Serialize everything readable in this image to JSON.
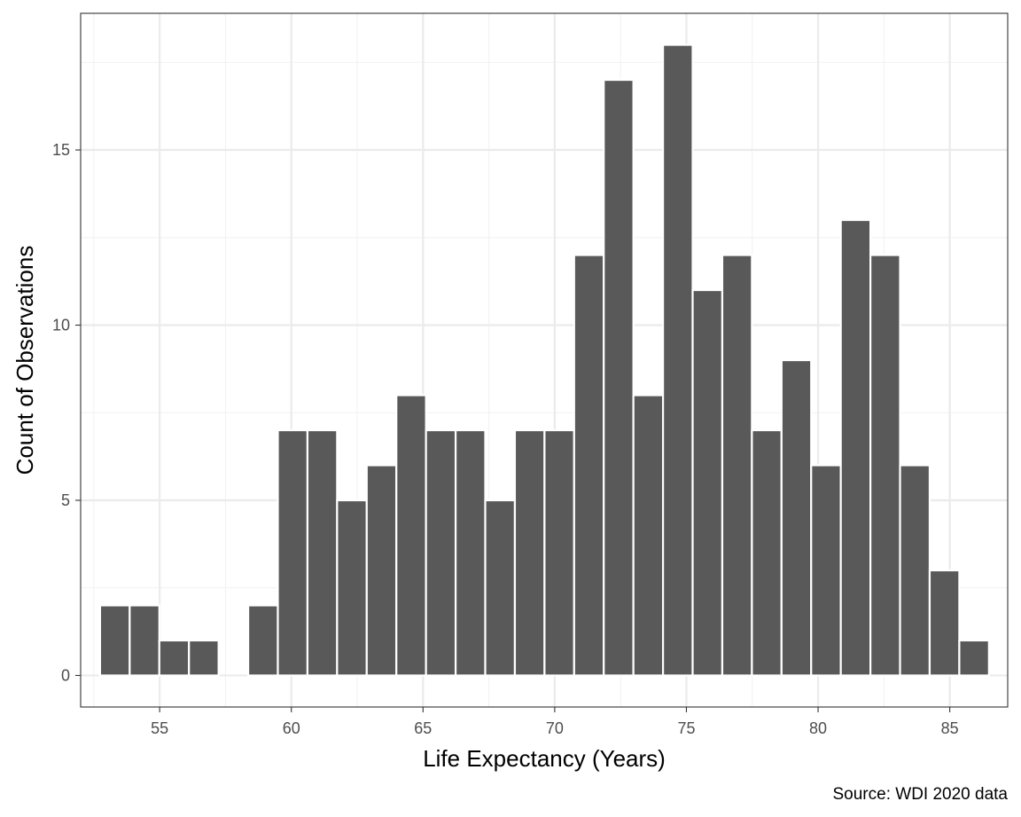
{
  "chart_data": {
    "type": "bar",
    "xlabel": "Life Expectancy (Years)",
    "ylabel": "Count of Observations",
    "caption": "Source: WDI 2020 data",
    "bin_width": 1.125,
    "bin_centers": [
      53.3,
      54.425,
      55.55,
      56.675,
      57.8,
      58.925,
      60.05,
      61.175,
      62.3,
      63.425,
      64.55,
      65.675,
      66.8,
      67.925,
      69.05,
      70.175,
      71.3,
      72.425,
      73.55,
      74.675,
      75.8,
      76.925,
      78.05,
      79.175,
      80.3,
      81.425,
      82.55,
      83.675,
      84.8,
      85.925
    ],
    "values": [
      2,
      2,
      1,
      1,
      0,
      2,
      7,
      7,
      5,
      6,
      8,
      7,
      7,
      5,
      7,
      7,
      12,
      17,
      8,
      18,
      11,
      12,
      7,
      9,
      6,
      13,
      12,
      6,
      3,
      1
    ],
    "xlim": [
      52.0,
      87.2
    ],
    "ylim": [
      -0.9,
      18.9
    ],
    "x_ticks": [
      55,
      60,
      65,
      70,
      75,
      80,
      85
    ],
    "y_ticks": [
      0,
      5,
      10,
      15
    ],
    "x_tick_labels": [
      "55",
      "60",
      "65",
      "70",
      "75",
      "80",
      "85"
    ],
    "y_tick_labels": [
      "0",
      "5",
      "10",
      "15"
    ],
    "grid": true,
    "colors": {
      "bar_fill": "#595959",
      "bar_outline": "#ffffff",
      "grid_major": "#ebebeb",
      "grid_minor": "#f2f2f2",
      "panel_border": "#333333",
      "tick_text": "#4d4d4d"
    }
  }
}
